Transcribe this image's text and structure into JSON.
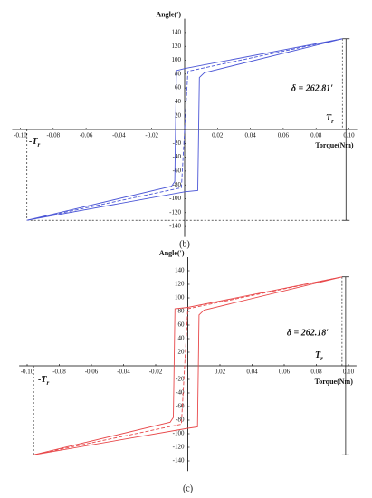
{
  "chart_data": [
    {
      "type": "line",
      "caption": "(b)",
      "x_label": "Torque(Nm)",
      "y_label": "Angle(′)",
      "xlim": [
        -0.105,
        0.105
      ],
      "ylim": [
        -155,
        160
      ],
      "xticks": [
        {
          "value": -0.1,
          "label": "-0.10"
        },
        -0.08,
        -0.06,
        -0.04,
        -0.02,
        0.02,
        0.04,
        0.06,
        0.08,
        {
          "value": 0.1,
          "label": "0.10"
        }
      ],
      "yticks": [
        -140,
        -120,
        -100,
        -80,
        -60,
        -40,
        -20,
        20,
        40,
        60,
        80,
        100,
        120,
        140
      ],
      "series": [
        {
          "color": "#4a55d6",
          "style": "solid",
          "x": [
            0.096,
            0.0,
            -0.005,
            -0.006,
            -0.008,
            -0.096,
            0.0,
            0.008,
            0.009,
            0.012,
            0.096
          ],
          "values": [
            131,
            88,
            85,
            -75,
            -82,
            -131,
            -90,
            -88,
            75,
            82,
            131
          ]
        },
        {
          "color": "#4a55d6",
          "style": "dashed",
          "x": [
            -0.096,
            -0.002,
            0.002,
            0.096
          ],
          "values": [
            -131,
            -84,
            84,
            131
          ]
        }
      ],
      "annotations": {
        "delta": "δ = 262.81′",
        "tr": {
          "main": "T",
          "sub": "r"
        },
        "neg_tr": {
          "main": "-T",
          "sub": "r"
        }
      }
    },
    {
      "type": "line",
      "caption": "(c)",
      "x_label": "Torque(Nm)",
      "y_label": "Angle(′)",
      "xlim": [
        -0.105,
        0.105
      ],
      "ylim": [
        -155,
        160
      ],
      "xticks": [
        {
          "value": -0.1,
          "label": "-0.10"
        },
        -0.08,
        -0.06,
        -0.04,
        -0.02,
        0.02,
        0.04,
        0.06,
        0.08,
        {
          "value": 0.1,
          "label": "0.10"
        }
      ],
      "yticks": [
        -140,
        -120,
        -100,
        -80,
        -60,
        -40,
        -20,
        20,
        40,
        60,
        80,
        100,
        120,
        140
      ],
      "series": [
        {
          "color": "#e8484a",
          "style": "solid",
          "x": [
            0.096,
            0.0,
            -0.008,
            -0.009,
            -0.011,
            -0.096,
            0.0,
            0.006,
            0.007,
            0.01,
            0.096
          ],
          "values": [
            131,
            86,
            84,
            -76,
            -83,
            -131,
            -92,
            -90,
            75,
            82,
            131
          ]
        },
        {
          "color": "#e8484a",
          "style": "dashed",
          "x": [
            -0.096,
            -0.004,
            0.0,
            0.096
          ],
          "values": [
            -131,
            -86,
            84,
            131
          ]
        }
      ],
      "annotations": {
        "delta": "δ = 262.18′",
        "tr": {
          "main": "T",
          "sub": "r"
        },
        "neg_tr": {
          "main": "-T",
          "sub": "r"
        }
      }
    }
  ]
}
